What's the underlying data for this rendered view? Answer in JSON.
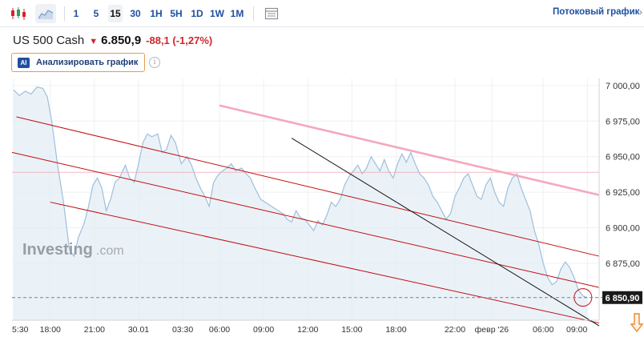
{
  "toolbar": {
    "chart_type_icons": [
      "candlestick-icon",
      "area-chart-icon"
    ],
    "timeframes": [
      "1",
      "5",
      "15",
      "30",
      "1H",
      "5H",
      "1D",
      "1W",
      "1M"
    ],
    "active_timeframe": "15",
    "indicators_icon": "indicators-icon",
    "stream_link": "Потоковый график",
    "stream_chevron": "›"
  },
  "quote": {
    "instrument": "US 500 Cash",
    "direction_icon": "down-arrow-icon",
    "price": "6.850,9",
    "change": "-88,1 (-1,27%)",
    "change_color": "#d0262d"
  },
  "ai": {
    "badge": "AI",
    "label": "Анализировать график",
    "info": "i"
  },
  "chart_data": {
    "type": "area",
    "title": "",
    "xlabel": "",
    "ylabel": "",
    "ylim": [
      6835,
      7005
    ],
    "y_ticks": [
      {
        "value": 7000,
        "label": "7 000,00"
      },
      {
        "value": 6975,
        "label": "6 975,00"
      },
      {
        "value": 6950,
        "label": "6 950,00"
      },
      {
        "value": 6925,
        "label": "6 925,00"
      },
      {
        "value": 6900,
        "label": "6 900,00"
      },
      {
        "value": 6875,
        "label": "6 875,00"
      }
    ],
    "x_ticks": [
      {
        "t": 0,
        "label": "5:30"
      },
      {
        "t": 2.5,
        "label": "18:00"
      },
      {
        "t": 5.5,
        "label": "21:00"
      },
      {
        "t": 8.5,
        "label": "30.01"
      },
      {
        "t": 11.5,
        "label": "03:30"
      },
      {
        "t": 14,
        "label": "06:00"
      },
      {
        "t": 17,
        "label": "09:00"
      },
      {
        "t": 20,
        "label": "12:00"
      },
      {
        "t": 23,
        "label": "15:00"
      },
      {
        "t": 26,
        "label": "18:00"
      },
      {
        "t": 30,
        "label": "22:00"
      },
      {
        "t": 32.5,
        "label": "февр '26"
      },
      {
        "t": 36,
        "label": "06:00"
      },
      {
        "t": 39,
        "label": "09:00"
      }
    ],
    "x_range": [
      -0.1,
      39.8
    ],
    "series": [
      {
        "values": [
          [
            0,
            6997
          ],
          [
            0.4,
            6993
          ],
          [
            0.8,
            6996
          ],
          [
            1.2,
            6994
          ],
          [
            1.6,
            6999
          ],
          [
            2.0,
            6998
          ],
          [
            2.3,
            6992
          ],
          [
            2.6,
            6975
          ],
          [
            3.0,
            6944
          ],
          [
            3.4,
            6918
          ],
          [
            3.8,
            6885
          ],
          [
            4.1,
            6880
          ],
          [
            4.4,
            6893
          ],
          [
            4.8,
            6903
          ],
          [
            5.1,
            6915
          ],
          [
            5.4,
            6930
          ],
          [
            5.7,
            6935
          ],
          [
            6.0,
            6928
          ],
          [
            6.3,
            6912
          ],
          [
            6.6,
            6920
          ],
          [
            6.9,
            6932
          ],
          [
            7.2,
            6935
          ],
          [
            7.6,
            6944
          ],
          [
            7.9,
            6935
          ],
          [
            8.2,
            6932
          ],
          [
            8.5,
            6945
          ],
          [
            8.8,
            6960
          ],
          [
            9.1,
            6966
          ],
          [
            9.4,
            6964
          ],
          [
            9.8,
            6966
          ],
          [
            10.1,
            6953
          ],
          [
            10.4,
            6955
          ],
          [
            10.7,
            6965
          ],
          [
            11.0,
            6960
          ],
          [
            11.4,
            6945
          ],
          [
            11.8,
            6950
          ],
          [
            12.1,
            6944
          ],
          [
            12.4,
            6935
          ],
          [
            12.7,
            6928
          ],
          [
            13.0,
            6922
          ],
          [
            13.3,
            6915
          ],
          [
            13.6,
            6932
          ],
          [
            13.9,
            6937
          ],
          [
            14.2,
            6940
          ],
          [
            14.5,
            6942
          ],
          [
            14.8,
            6945
          ],
          [
            15.1,
            6940
          ],
          [
            15.5,
            6942
          ],
          [
            15.8,
            6938
          ],
          [
            16.1,
            6935
          ],
          [
            16.4,
            6928
          ],
          [
            16.8,
            6920
          ],
          [
            17.1,
            6918
          ],
          [
            17.4,
            6916
          ],
          [
            17.7,
            6914
          ],
          [
            18.0,
            6912
          ],
          [
            18.3,
            6910
          ],
          [
            18.6,
            6906
          ],
          [
            18.9,
            6904
          ],
          [
            19.2,
            6912
          ],
          [
            19.5,
            6907
          ],
          [
            19.8,
            6906
          ],
          [
            20.1,
            6902
          ],
          [
            20.4,
            6898
          ],
          [
            20.7,
            6905
          ],
          [
            21.0,
            6902
          ],
          [
            21.3,
            6909
          ],
          [
            21.6,
            6918
          ],
          [
            21.9,
            6915
          ],
          [
            22.2,
            6920
          ],
          [
            22.5,
            6930
          ],
          [
            22.8,
            6936
          ],
          [
            23.1,
            6940
          ],
          [
            23.4,
            6944
          ],
          [
            23.7,
            6938
          ],
          [
            24.0,
            6942
          ],
          [
            24.3,
            6950
          ],
          [
            24.6,
            6945
          ],
          [
            24.9,
            6940
          ],
          [
            25.2,
            6948
          ],
          [
            25.5,
            6940
          ],
          [
            25.8,
            6935
          ],
          [
            26.1,
            6945
          ],
          [
            26.4,
            6952
          ],
          [
            26.7,
            6946
          ],
          [
            27.0,
            6953
          ],
          [
            27.3,
            6945
          ],
          [
            27.6,
            6938
          ],
          [
            27.9,
            6935
          ],
          [
            28.2,
            6930
          ],
          [
            28.5,
            6922
          ],
          [
            28.8,
            6918
          ],
          [
            29.1,
            6912
          ],
          [
            29.4,
            6906
          ],
          [
            29.7,
            6910
          ],
          [
            30.0,
            6922
          ],
          [
            30.3,
            6928
          ],
          [
            30.6,
            6935
          ],
          [
            30.9,
            6938
          ],
          [
            31.2,
            6930
          ],
          [
            31.5,
            6922
          ],
          [
            31.8,
            6920
          ],
          [
            32.1,
            6930
          ],
          [
            32.4,
            6935
          ],
          [
            32.7,
            6925
          ],
          [
            33.0,
            6918
          ],
          [
            33.3,
            6915
          ],
          [
            33.6,
            6928
          ],
          [
            33.9,
            6935
          ],
          [
            34.2,
            6938
          ],
          [
            34.5,
            6928
          ],
          [
            34.8,
            6920
          ],
          [
            35.1,
            6912
          ],
          [
            35.4,
            6898
          ],
          [
            35.7,
            6888
          ],
          [
            36.0,
            6875
          ],
          [
            36.3,
            6865
          ],
          [
            36.6,
            6860
          ],
          [
            36.9,
            6862
          ],
          [
            37.2,
            6871
          ],
          [
            37.5,
            6876
          ],
          [
            37.8,
            6872
          ],
          [
            38.1,
            6865
          ],
          [
            38.4,
            6856
          ],
          [
            38.7,
            6852
          ],
          [
            39.0,
            6850.9
          ]
        ]
      }
    ],
    "current_price": {
      "value": 6850.9,
      "label": "6 850,90"
    },
    "annotations": [
      {
        "kind": "horizontal-line",
        "color": "#f2a8b4",
        "y": 6939
      },
      {
        "kind": "trendline",
        "color": "#c20e10",
        "points": [
          [
            0.2,
            6978
          ],
          [
            39.8,
            6880
          ]
        ]
      },
      {
        "kind": "trendline",
        "color": "#c20e10",
        "points": [
          [
            -0.1,
            6953
          ],
          [
            39.8,
            6858
          ]
        ]
      },
      {
        "kind": "trendline",
        "color": "#c20e10",
        "points": [
          [
            2.5,
            6918
          ],
          [
            39.8,
            6833
          ]
        ]
      },
      {
        "kind": "trendline",
        "color": "#f4a9be",
        "points": [
          [
            14.0,
            6986
          ],
          [
            39.8,
            6923
          ]
        ]
      },
      {
        "kind": "trendline",
        "color": "#111111",
        "points": [
          [
            18.9,
            6963
          ],
          [
            39.8,
            6831
          ]
        ]
      },
      {
        "kind": "circle",
        "color": "#c0262c",
        "center": [
          38.7,
          6851
        ]
      },
      {
        "kind": "arrow",
        "color": "#e8882b",
        "direction": "down"
      }
    ],
    "grid": true,
    "watermark": [
      "Investing",
      ".com"
    ]
  }
}
